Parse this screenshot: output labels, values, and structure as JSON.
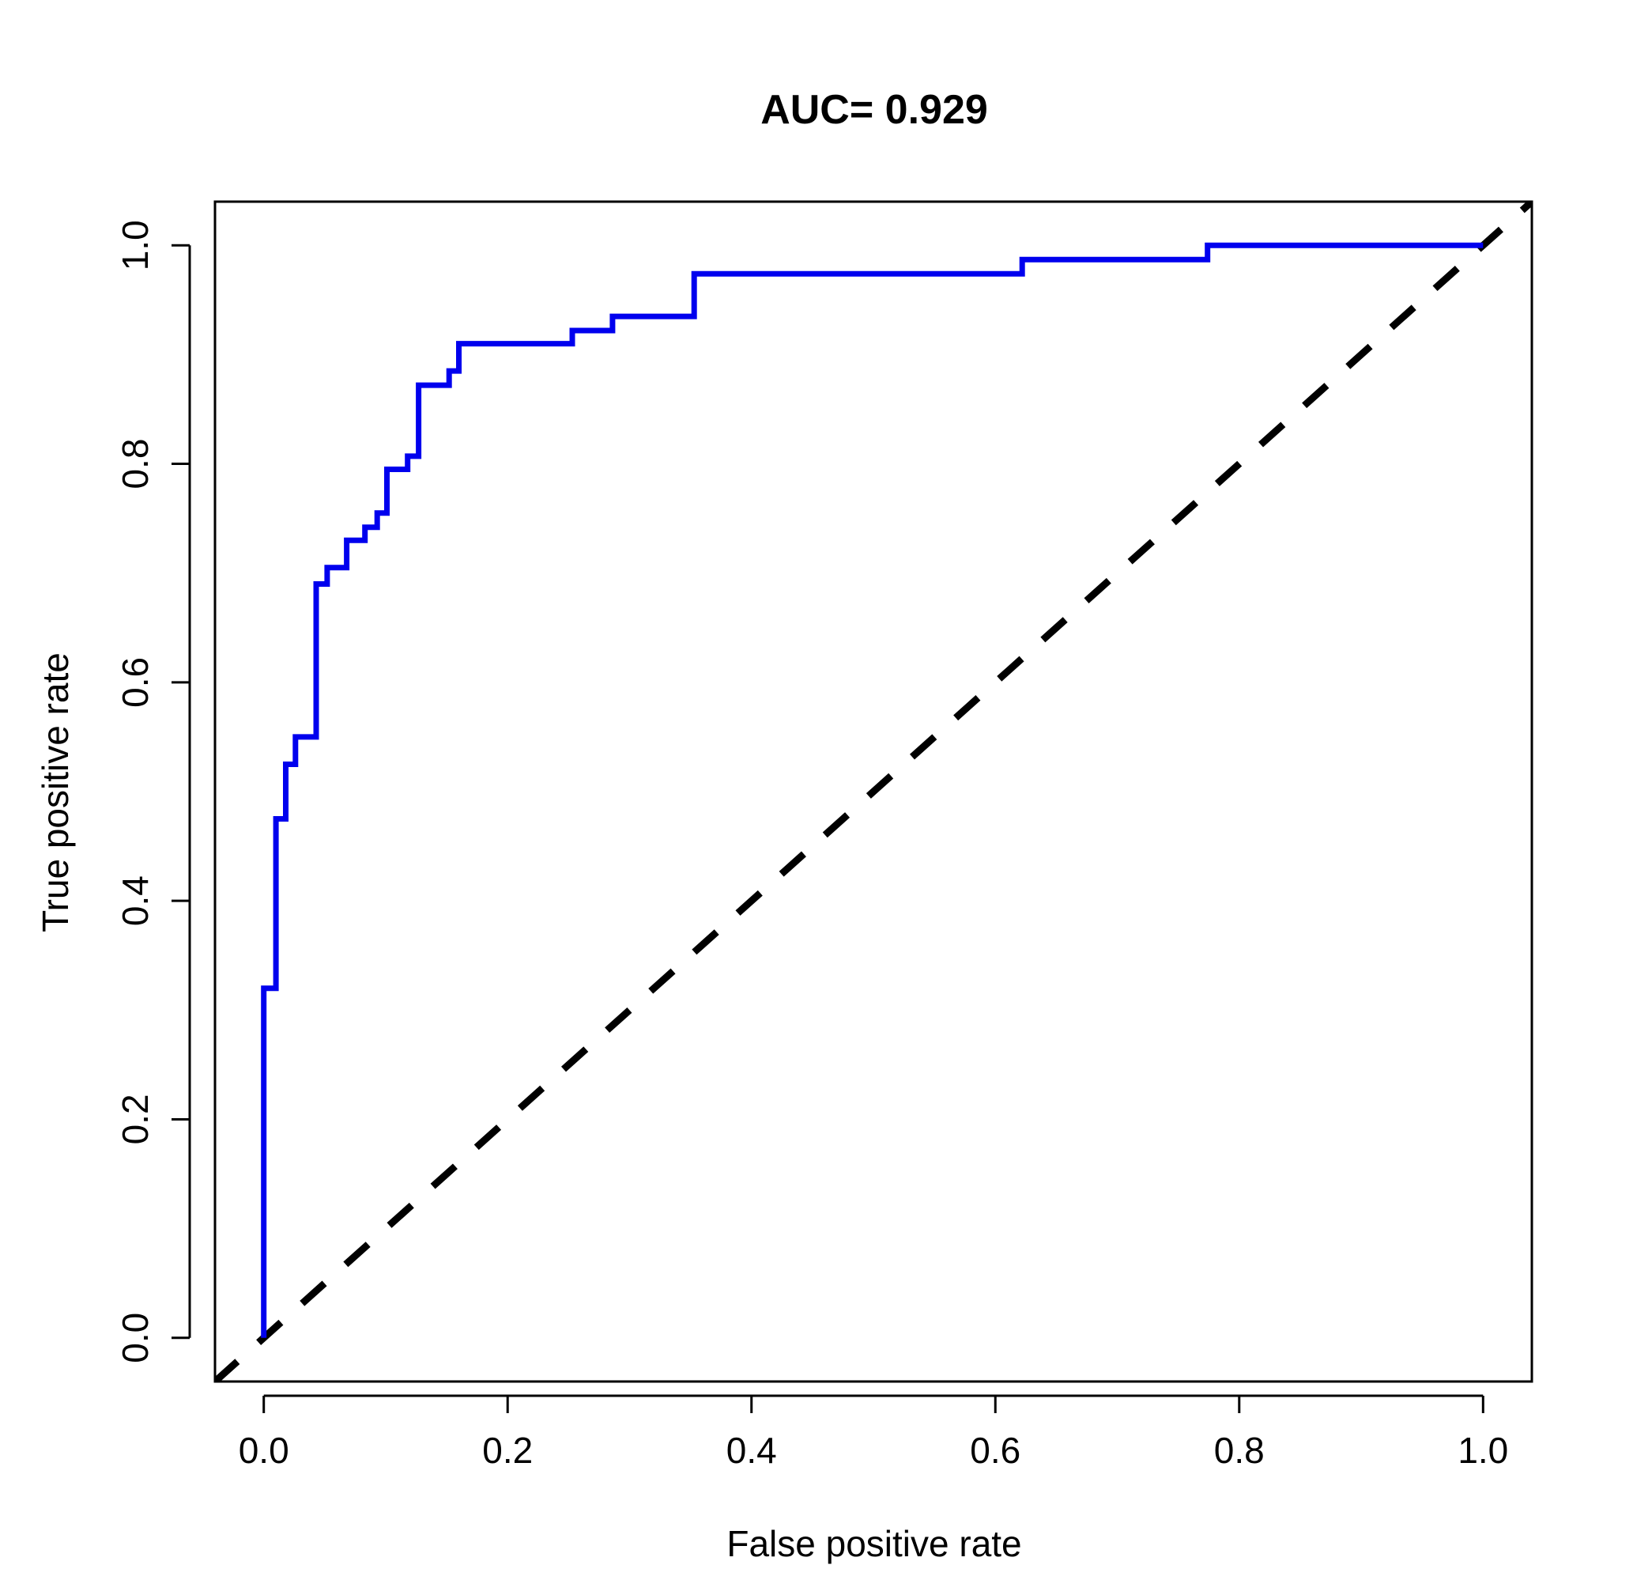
{
  "chart_data": {
    "type": "line",
    "title": "AUC= 0.929",
    "xlabel": "False positive rate",
    "ylabel": "True positive rate",
    "xlim": [
      -0.04,
      1.04
    ],
    "ylim": [
      -0.04,
      1.04
    ],
    "grid": false,
    "x_ticks": [
      {
        "value": 0.0,
        "label": "0.0"
      },
      {
        "value": 0.2,
        "label": "0.2"
      },
      {
        "value": 0.4,
        "label": "0.4"
      },
      {
        "value": 0.6,
        "label": "0.6"
      },
      {
        "value": 0.8,
        "label": "0.8"
      },
      {
        "value": 1.0,
        "label": "1.0"
      }
    ],
    "y_ticks": [
      {
        "value": 0.0,
        "label": "0.0"
      },
      {
        "value": 0.2,
        "label": "0.2"
      },
      {
        "value": 0.4,
        "label": "0.4"
      },
      {
        "value": 0.6,
        "label": "0.6"
      },
      {
        "value": 0.8,
        "label": "0.8"
      },
      {
        "value": 1.0,
        "label": "1.0"
      }
    ],
    "series": [
      {
        "color": "#0000ee",
        "style": "solid",
        "step": true,
        "points": [
          [
            0.0,
            0.0
          ],
          [
            0.0,
            0.32
          ],
          [
            0.01,
            0.32
          ],
          [
            0.01,
            0.475
          ],
          [
            0.018,
            0.475
          ],
          [
            0.018,
            0.525
          ],
          [
            0.026,
            0.525
          ],
          [
            0.026,
            0.55
          ],
          [
            0.043,
            0.55
          ],
          [
            0.043,
            0.69
          ],
          [
            0.052,
            0.69
          ],
          [
            0.052,
            0.705
          ],
          [
            0.068,
            0.705
          ],
          [
            0.068,
            0.73
          ],
          [
            0.083,
            0.73
          ],
          [
            0.083,
            0.742
          ],
          [
            0.093,
            0.742
          ],
          [
            0.093,
            0.755
          ],
          [
            0.101,
            0.755
          ],
          [
            0.101,
            0.795
          ],
          [
            0.118,
            0.795
          ],
          [
            0.118,
            0.807
          ],
          [
            0.127,
            0.807
          ],
          [
            0.127,
            0.872
          ],
          [
            0.152,
            0.872
          ],
          [
            0.152,
            0.885
          ],
          [
            0.16,
            0.885
          ],
          [
            0.16,
            0.91
          ],
          [
            0.253,
            0.91
          ],
          [
            0.253,
            0.922
          ],
          [
            0.286,
            0.922
          ],
          [
            0.286,
            0.935
          ],
          [
            0.353,
            0.935
          ],
          [
            0.353,
            0.974
          ],
          [
            0.622,
            0.974
          ],
          [
            0.622,
            0.987
          ],
          [
            0.774,
            0.987
          ],
          [
            0.774,
            1.0
          ],
          [
            1.0,
            1.0
          ]
        ]
      },
      {
        "color": "#000000",
        "style": "dashed",
        "step": false,
        "points": [
          [
            -0.04,
            -0.04
          ],
          [
            1.04,
            1.04
          ]
        ]
      }
    ]
  }
}
